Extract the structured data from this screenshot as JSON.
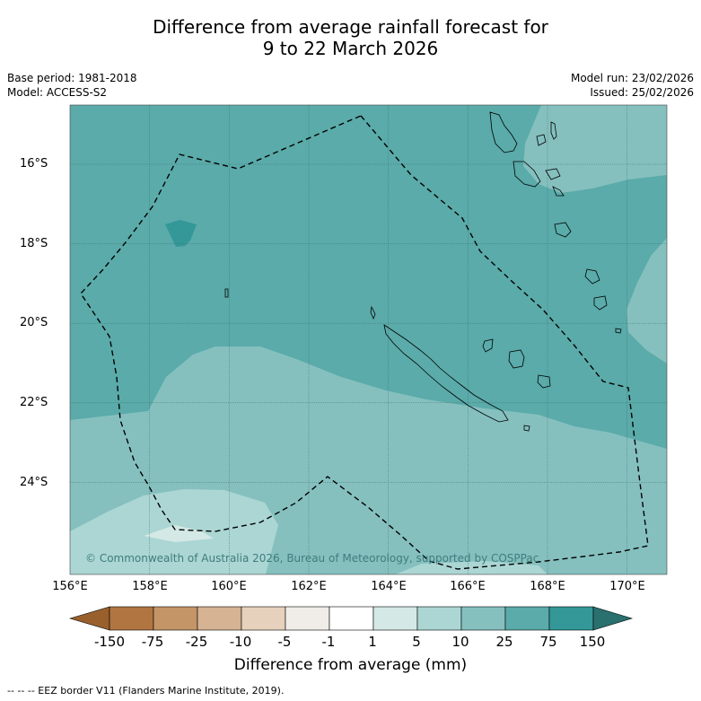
{
  "title": {
    "line1": "Difference from average rainfall forecast for",
    "line2": "9 to 22 March 2026"
  },
  "meta": {
    "base_period": "Base period: 1981-2018",
    "model": "Model: ACCESS-S2",
    "model_run": "Model run: 23/02/2026",
    "issued": "Issued: 25/02/2026"
  },
  "map": {
    "lat_labels": [
      "16°S",
      "18°S",
      "20°S",
      "22°S",
      "24°S"
    ],
    "lon_labels": [
      "156°E",
      "158°E",
      "160°E",
      "162°E",
      "164°E",
      "166°E",
      "168°E",
      "170°E"
    ],
    "copyright": "© Commonwealth of Australia 2026, Bureau of Meteorology, supported by COSPPac"
  },
  "colorbar": {
    "title": "Difference from average (mm)",
    "ticks": [
      "-150",
      "-75",
      "-25",
      "-10",
      "-5",
      "-1",
      "1",
      "5",
      "10",
      "25",
      "75",
      "150"
    ],
    "colors": [
      "#99602d",
      "#b07540",
      "#c49566",
      "#d5b393",
      "#e6d1bd",
      "#f0ede9",
      "#ffffff",
      "#d4e9e6",
      "#abd6d4",
      "#85c0bf",
      "#5aabaa",
      "#339897",
      "#29706f"
    ]
  },
  "legend": {
    "eez_line": "--  --  -- EEZ border V11 (Flanders Marine Institute, 2019)."
  }
}
